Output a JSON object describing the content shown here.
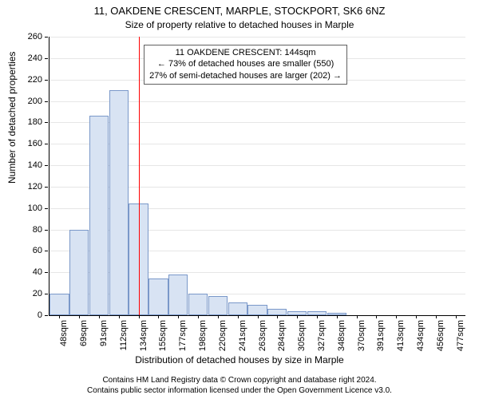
{
  "title1": "11, OAKDENE CRESCENT, MARPLE, STOCKPORT, SK6 6NZ",
  "title2": "Size of property relative to detached houses in Marple",
  "ylabel": "Number of detached properties",
  "xlabel": "Distribution of detached houses by size in Marple",
  "footer1": "Contains HM Land Registry data © Crown copyright and database right 2024.",
  "footer2": "Contains public sector information licensed under the Open Government Licence v3.0.",
  "chart": {
    "type": "histogram",
    "plot_bg": "#ffffff",
    "grid_color": "#e6e6e6",
    "axis_color": "#000000",
    "bar_fill": "#d8e3f3",
    "bar_stroke": "#7a98c9",
    "vline_color": "#ff0000",
    "annotation_border": "#606060",
    "annotation_bg": "#ffffff",
    "ylim": [
      0,
      260
    ],
    "ytick_step": 20,
    "x_categories": [
      "48sqm",
      "69sqm",
      "91sqm",
      "112sqm",
      "134sqm",
      "155sqm",
      "177sqm",
      "198sqm",
      "220sqm",
      "241sqm",
      "263sqm",
      "284sqm",
      "305sqm",
      "327sqm",
      "348sqm",
      "370sqm",
      "391sqm",
      "413sqm",
      "434sqm",
      "456sqm",
      "477sqm"
    ],
    "values": [
      20,
      80,
      186,
      210,
      104,
      34,
      38,
      20,
      18,
      12,
      10,
      6,
      4,
      4,
      2,
      0,
      0,
      0,
      0,
      0,
      0
    ],
    "vline_at_index": 4.5,
    "annotation": {
      "lines": [
        "11 OAKDENE CRESCENT: 144sqm",
        "← 73% of detached houses are smaller (550)",
        "27% of semi-detached houses are larger (202) →"
      ],
      "near_index": 4.6,
      "y_value": 238
    }
  }
}
